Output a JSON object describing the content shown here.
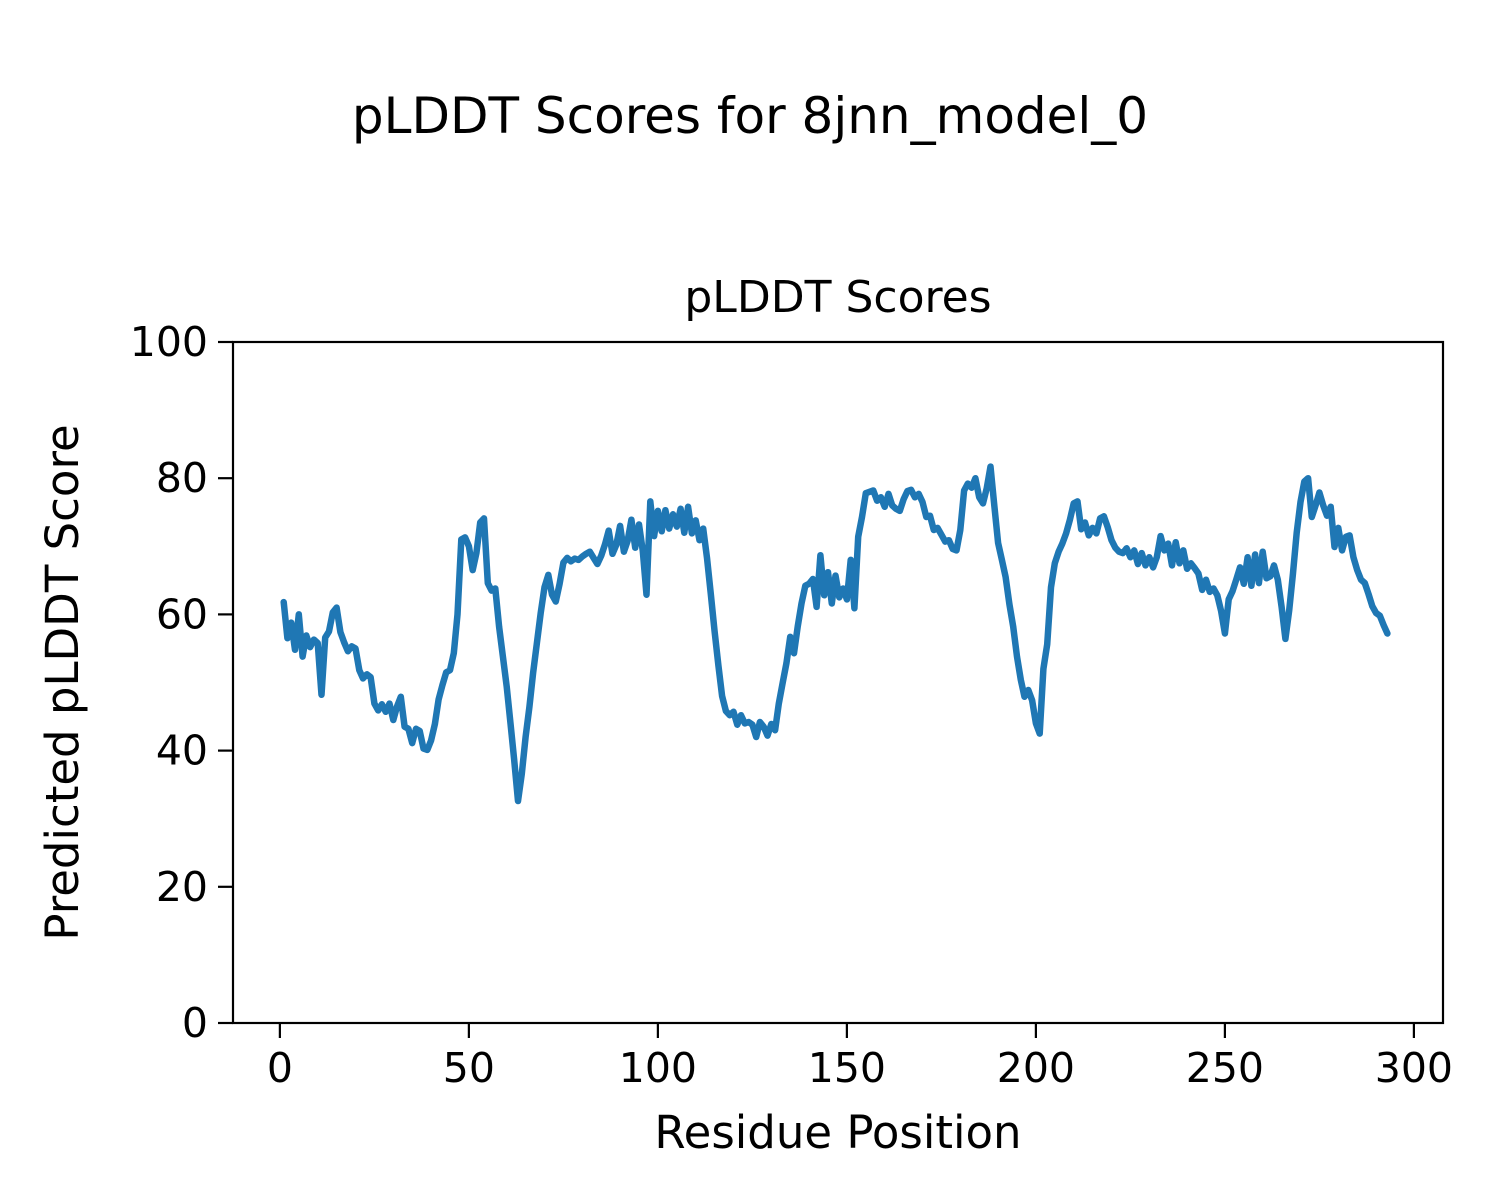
{
  "chart_data": {
    "type": "line",
    "suptitle": "pLDDT Scores for 8jnn_model_0",
    "title": "pLDDT Scores",
    "xlabel": "Residue Position",
    "ylabel": "Predicted pLDDT Score",
    "legend": "none",
    "grid": false,
    "line_color": "#1f77b4",
    "axis_color": "#000000",
    "background_color": "#ffffff",
    "xlim": [
      -12.4,
      307.7
    ],
    "ylim": [
      0,
      100
    ],
    "xticks": [
      0,
      50,
      100,
      150,
      200,
      250,
      300
    ],
    "yticks": [
      0,
      20,
      40,
      60,
      80,
      100
    ],
    "x_first_residue": 1,
    "values": [
      61.8,
      56.5,
      58.8,
      54.8,
      60.0,
      53.8,
      56.9,
      55.2,
      56.3,
      55.8,
      48.2,
      56.6,
      57.5,
      60.3,
      61.0,
      57.4,
      55.9,
      54.6,
      55.3,
      55.0,
      51.8,
      50.6,
      51.2,
      50.8,
      46.9,
      45.9,
      46.8,
      45.7,
      46.9,
      44.5,
      46.5,
      47.9,
      43.5,
      43.2,
      41.1,
      43.2,
      42.9,
      40.3,
      40.1,
      41.5,
      43.9,
      47.5,
      49.6,
      51.5,
      51.8,
      54.3,
      60.0,
      71.0,
      71.3,
      70.0,
      66.5,
      69.0,
      73.5,
      74.1,
      64.6,
      63.5,
      63.8,
      58.2,
      53.8,
      49.4,
      44.0,
      38.6,
      32.6,
      36.6,
      42.0,
      46.4,
      51.4,
      55.8,
      60.2,
      64.0,
      65.8,
      62.9,
      61.9,
      64.5,
      67.6,
      68.3,
      67.8,
      68.2,
      68.0,
      68.5,
      68.9,
      69.2,
      68.3,
      67.4,
      68.6,
      70.3,
      72.3,
      68.9,
      70.2,
      73.0,
      69.2,
      70.8,
      73.9,
      69.8,
      73.2,
      69.3,
      62.9,
      76.6,
      71.5,
      75.2,
      72.2,
      75.3,
      72.6,
      74.7,
      72.9,
      75.5,
      72.0,
      75.8,
      71.9,
      73.8,
      70.9,
      72.6,
      68.3,
      63.0,
      57.5,
      52.5,
      48.0,
      45.8,
      45.2,
      45.7,
      43.8,
      45.2,
      44.0,
      44.2,
      43.8,
      42.0,
      44.2,
      43.5,
      42.2,
      43.9,
      43.0,
      46.9,
      49.9,
      52.8,
      56.7,
      54.3,
      58.2,
      61.6,
      64.2,
      64.5,
      65.2,
      61.1,
      68.7,
      62.8,
      66.2,
      61.6,
      65.7,
      62.5,
      63.8,
      62.2,
      68.0,
      60.9,
      71.4,
      74.3,
      77.8,
      78.0,
      78.2,
      76.7,
      77.2,
      75.8,
      77.7,
      76.0,
      75.5,
      75.2,
      76.9,
      78.1,
      78.3,
      77.2,
      77.7,
      76.5,
      74.3,
      74.5,
      72.4,
      72.7,
      71.7,
      70.7,
      70.9,
      69.6,
      69.4,
      72.4,
      78.2,
      79.2,
      78.6,
      80.0,
      77.2,
      76.3,
      78.5,
      81.7,
      76.0,
      70.5,
      68.0,
      65.5,
      61.5,
      58.2,
      53.8,
      50.4,
      47.9,
      48.9,
      47.4,
      44.0,
      42.5,
      52.0,
      55.6,
      64.0,
      67.5,
      69.2,
      70.4,
      71.9,
      73.9,
      76.3,
      76.6,
      72.5,
      73.5,
      71.6,
      72.7,
      71.9,
      74.1,
      74.4,
      72.8,
      70.9,
      69.8,
      69.2,
      69.0,
      69.7,
      68.4,
      69.4,
      67.4,
      69.0,
      67.2,
      68.4,
      66.9,
      68.4,
      71.5,
      69.4,
      70.4,
      67.2,
      70.6,
      67.5,
      69.4,
      66.7,
      67.5,
      66.8,
      66.0,
      63.6,
      65.1,
      63.3,
      63.8,
      62.8,
      60.5,
      57.2,
      62.2,
      63.4,
      65.1,
      66.9,
      64.5,
      68.4,
      64.2,
      68.8,
      64.6,
      69.2,
      65.3,
      65.6,
      67.2,
      65.1,
      61.1,
      56.4,
      60.6,
      65.9,
      72.0,
      76.5,
      79.5,
      80.0,
      74.3,
      76.0,
      77.9,
      76.0,
      74.5,
      75.8,
      69.9,
      72.7,
      69.4,
      71.4,
      71.6,
      68.4,
      66.5,
      65.1,
      64.6,
      63.0,
      61.2,
      60.2,
      59.8,
      58.4,
      57.2
    ]
  }
}
